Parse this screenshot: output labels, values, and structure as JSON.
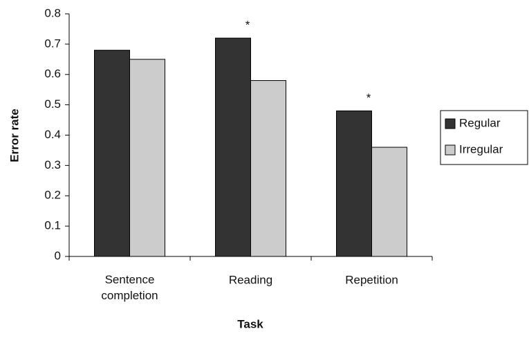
{
  "chart_data": {
    "type": "bar",
    "x_label": "Task",
    "y_label": "Error rate",
    "categories": [
      "Sentence completion",
      "Reading",
      "Repetition"
    ],
    "series": [
      {
        "name": "Regular",
        "color": "#333333",
        "values": [
          0.68,
          0.72,
          0.48
        ],
        "markers": [
          null,
          "*",
          "*"
        ]
      },
      {
        "name": "Irregular",
        "color": "#cccccc",
        "values": [
          0.65,
          0.58,
          0.36
        ]
      }
    ],
    "ylim": [
      0,
      0.8
    ],
    "yticks": [
      0,
      0.1,
      0.2,
      0.3,
      0.4,
      0.5,
      0.6,
      0.7,
      0.8
    ],
    "legend": "right"
  }
}
